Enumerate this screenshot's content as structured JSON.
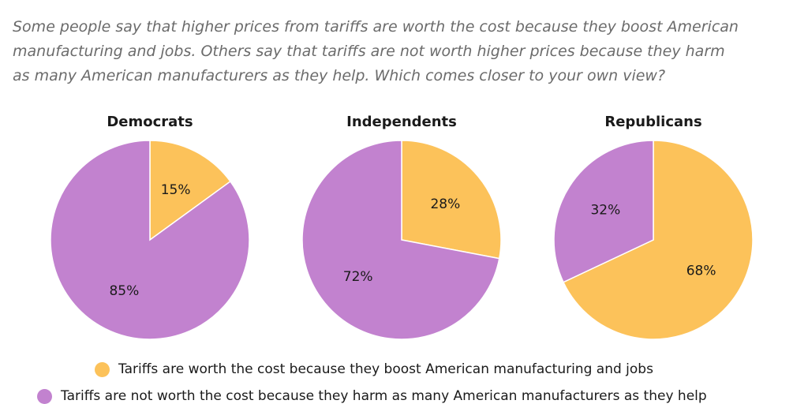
{
  "question": {
    "line1": "Some people say that higher prices from tariffs are worth the cost because they boost American",
    "line2": "manufacturing and jobs. Others say that tariffs are not worth higher prices because they harm",
    "line3": "as many American manufacturers as they help. Which comes closer to your own view?"
  },
  "colors": {
    "worth": "#fcc25a",
    "not_worth": "#c282cf"
  },
  "chart_data": [
    {
      "type": "pie",
      "title": "Democrats",
      "slices": [
        {
          "label": "Tariffs are worth the cost because they boost American manufacturing and jobs",
          "value": 15,
          "value_label": "15%"
        },
        {
          "label": "Tariffs are not worth the cost because they harm as many American manufacturers as they help",
          "value": 85,
          "value_label": "85%"
        }
      ]
    },
    {
      "type": "pie",
      "title": "Independents",
      "slices": [
        {
          "label": "Tariffs are worth the cost because they boost American manufacturing and jobs",
          "value": 28,
          "value_label": "28%"
        },
        {
          "label": "Tariffs are not worth the cost because they harm as many American manufacturers as they help",
          "value": 72,
          "value_label": "72%"
        }
      ]
    },
    {
      "type": "pie",
      "title": "Republicans",
      "slices": [
        {
          "label": "Tariffs are worth the cost because they boost American manufacturing and jobs",
          "value": 68,
          "value_label": "68%"
        },
        {
          "label": "Tariffs are not worth the cost because they harm as many American manufacturers as they help",
          "value": 32,
          "value_label": "32%"
        }
      ]
    }
  ],
  "legend": {
    "placement": "bottom",
    "items": [
      {
        "label": "Tariffs are worth the cost because they boost American manufacturing and jobs"
      },
      {
        "label": "Tariffs are not worth the cost because they harm as many American manufacturers as they help"
      }
    ]
  }
}
